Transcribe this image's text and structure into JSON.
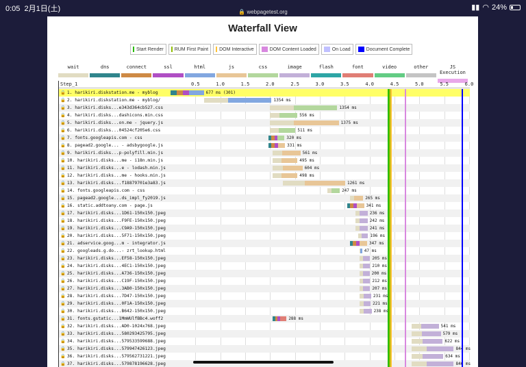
{
  "statusbar": {
    "time": "0:05",
    "date": "2月1日(土)",
    "url": "webpagetest.org",
    "battery": "24%"
  },
  "page_title": "Waterfall View",
  "legend": [
    {
      "label": "Start Render",
      "color": "#28bc00"
    },
    {
      "label": "RUM First Paint",
      "color": "#8fbc00"
    },
    {
      "label": "DOM Interactive",
      "color": "#ffc233"
    },
    {
      "label": "DOM Content Loaded",
      "color": "#d888df"
    },
    {
      "label": "On Load",
      "color": "#c0c0ff"
    },
    {
      "label": "Document Complete",
      "color": "#0000ff"
    }
  ],
  "types": [
    {
      "label": "wait",
      "color": "#e1dcc2"
    },
    {
      "label": "dns",
      "color": "#30858c"
    },
    {
      "label": "connect",
      "color": "#ce8a45"
    },
    {
      "label": "ssl",
      "color": "#b04fc4"
    },
    {
      "label": "html",
      "color": "#82a7e0"
    },
    {
      "label": "js",
      "color": "#e8c697"
    },
    {
      "label": "css",
      "color": "#b3d79d"
    },
    {
      "label": "image",
      "color": "#c2b0d8"
    },
    {
      "label": "flash",
      "color": "#2da5a5"
    },
    {
      "label": "font",
      "color": "#e07e75"
    },
    {
      "label": "video",
      "color": "#63cc84"
    },
    {
      "label": "other",
      "color": "#c4c4c4"
    },
    {
      "label": "JS Execution",
      "color": "#e9a8ea"
    }
  ],
  "waterfall": {
    "step_label": "Step_1",
    "ticks": [
      "0.5",
      "1.0",
      "1.5",
      "2.0",
      "2.5",
      "3.0",
      "3.5",
      "4.0",
      "4.5",
      "5.0",
      "5.5",
      "6.0"
    ],
    "requests": [
      {
        "label": "1. harikiri.diskstation.me - myblog",
        "start": 0.0,
        "end": 0.67,
        "time": "677 ms (301)",
        "type": "html",
        "ssl": true
      },
      {
        "label": "2. harikiri.diskstation.me - myblog/",
        "start": 0.68,
        "end": 2.03,
        "time": "1354 ms",
        "type": "html"
      },
      {
        "label": "3. harikiri.disks...e343d364cb527.css",
        "start": 2.0,
        "end": 3.35,
        "time": "1354 ms",
        "type": "css"
      },
      {
        "label": "4. harikiri.disks...dashicons.min.css",
        "start": 2.0,
        "end": 2.55,
        "time": "556 ms",
        "type": "css"
      },
      {
        "label": "5. harikiri.disks...on.me - jquery.js",
        "start": 2.0,
        "end": 3.38,
        "time": "1375 ms",
        "type": "js"
      },
      {
        "label": "6. harikiri.disks...04524cf205e6.css",
        "start": 2.0,
        "end": 2.51,
        "time": "511 ms",
        "type": "css"
      },
      {
        "label": "7. fonts.googleapis.com - css",
        "start": 1.97,
        "end": 2.29,
        "time": "320 ms",
        "type": "css",
        "ssl": true
      },
      {
        "label": "8. pagead2.google... - adsbygoogle.js",
        "start": 1.97,
        "end": 2.3,
        "time": "331 ms",
        "type": "js",
        "ssl": true
      },
      {
        "label": "9. harikiri.disks...p-polyfill.min.js",
        "start": 2.05,
        "end": 2.61,
        "time": "561 ms",
        "type": "js"
      },
      {
        "label": "10. harikiri.disks...me - i18n.min.js",
        "start": 2.05,
        "end": 2.55,
        "time": "495 ms",
        "type": "js"
      },
      {
        "label": "11. harikiri.disks...e - lodash.min.js",
        "start": 2.05,
        "end": 2.65,
        "time": "604 ms",
        "type": "js"
      },
      {
        "label": "12. harikiri.disks...me - hooks.min.js",
        "start": 2.05,
        "end": 2.55,
        "time": "498 ms",
        "type": "js"
      },
      {
        "label": "13. harikiri.disks...f18879701e3a83.js",
        "start": 2.25,
        "end": 3.51,
        "time": "1261 ms",
        "type": "js"
      },
      {
        "label": "14. fonts.googleapis.com - css",
        "start": 3.15,
        "end": 3.4,
        "time": "247 ms",
        "type": "css"
      },
      {
        "label": "15. pagead2.google...ds_impl_fy2019.js",
        "start": 3.6,
        "end": 3.87,
        "time": "265 ms",
        "type": "js"
      },
      {
        "label": "16. static.addtoany.com - page.js",
        "start": 3.55,
        "end": 3.89,
        "time": "341 ms",
        "type": "js",
        "ssl": true
      },
      {
        "label": "17. harikiri.disks...1D61-150x150.jpeg",
        "start": 3.72,
        "end": 3.96,
        "time": "236 ms",
        "type": "image"
      },
      {
        "label": "18. harikiri.disks...F9FE-150x150.jpeg",
        "start": 3.72,
        "end": 3.96,
        "time": "242 ms",
        "type": "image"
      },
      {
        "label": "19. harikiri.disks...C9A9-150x150.jpeg",
        "start": 3.72,
        "end": 3.96,
        "time": "241 ms",
        "type": "image"
      },
      {
        "label": "20. harikiri.disks...5F71-150x150.jpeg",
        "start": 3.77,
        "end": 3.97,
        "time": "196 ms",
        "type": "image"
      },
      {
        "label": "21. adservice.goog...m - integrator.js",
        "start": 3.6,
        "end": 3.95,
        "time": "347 ms",
        "type": "js",
        "ssl": true
      },
      {
        "label": "22. googleads.g.do...- zrt_lookup.html",
        "start": 3.8,
        "end": 3.85,
        "time": "47 ms",
        "type": "html"
      },
      {
        "label": "23. harikiri.disks...EF58-150x150.jpeg",
        "start": 3.8,
        "end": 4.01,
        "time": "205 ms",
        "type": "image"
      },
      {
        "label": "24. harikiri.disks...4EC1-150x150.jpeg",
        "start": 3.8,
        "end": 4.01,
        "time": "210 ms",
        "type": "image"
      },
      {
        "label": "25. harikiri.disks...A736-150x150.jpeg",
        "start": 3.8,
        "end": 4.0,
        "time": "200 ms",
        "type": "image"
      },
      {
        "label": "26. harikiri.disks...C19F-150x150.jpeg",
        "start": 3.8,
        "end": 4.01,
        "time": "212 ms",
        "type": "image"
      },
      {
        "label": "27. harikiri.disks...3AB0-150x150.jpeg",
        "start": 3.8,
        "end": 4.01,
        "time": "207 ms",
        "type": "image"
      },
      {
        "label": "28. harikiri.disks...7D47-150x150.jpeg",
        "start": 3.8,
        "end": 4.03,
        "time": "231 ms",
        "type": "image"
      },
      {
        "label": "29. harikiri.disks...0F1A-150x150.jpeg",
        "start": 3.8,
        "end": 4.02,
        "time": "221 ms",
        "type": "image"
      },
      {
        "label": "30. harikiri.disks...B642-150x150.jpeg",
        "start": 3.8,
        "end": 4.04,
        "time": "238 ms",
        "type": "image"
      },
      {
        "label": "31. fonts.gstatic...1MmWUlfBBc4.woff2",
        "start": 2.05,
        "end": 2.33,
        "time": "288 ms",
        "type": "font",
        "ssl": true
      },
      {
        "label": "32. harikiri.disks...AD0-1024x768.jpeg",
        "start": 4.85,
        "end": 5.39,
        "time": "541 ms",
        "type": "image"
      },
      {
        "label": "33. harikiri.disks...580293425795.jpeg",
        "start": 4.85,
        "end": 5.43,
        "time": "579 ms",
        "type": "image"
      },
      {
        "label": "34. harikiri.disks...579533599688.jpeg",
        "start": 4.85,
        "end": 5.47,
        "time": "622 ms",
        "type": "image"
      },
      {
        "label": "35. harikiri.disks...579947426123.jpeg",
        "start": 4.85,
        "end": 5.69,
        "time": "844 ms",
        "type": "image"
      },
      {
        "label": "36. harikiri.disks...579562731221.jpeg",
        "start": 4.85,
        "end": 5.48,
        "time": "634 ms",
        "type": "image"
      },
      {
        "label": "37. harikiri.disks...579878196628.jpeg",
        "start": 4.85,
        "end": 5.69,
        "time": "846 ms",
        "type": "image"
      }
    ]
  },
  "milestones": [
    {
      "name": "start-render-line",
      "at": 4.36,
      "color": "#28bc00"
    },
    {
      "name": "rum-first-paint-line",
      "at": 4.39,
      "color": "#8fbc00"
    },
    {
      "name": "dom-interactive-line",
      "at": 4.42,
      "color": "#ffc233"
    },
    {
      "name": "dom-content-loaded-line",
      "at": 4.71,
      "color": "#d888df"
    },
    {
      "name": "document-complete-line",
      "at": 5.85,
      "color": "#0000ff"
    }
  ]
}
